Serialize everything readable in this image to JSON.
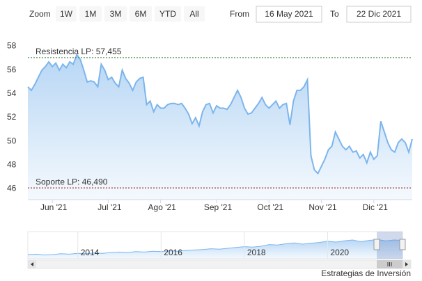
{
  "range_selector": {
    "zoom_label": "Zoom",
    "buttons": [
      "1W",
      "1M",
      "3M",
      "6M",
      "YTD",
      "All"
    ],
    "from_label": "From",
    "from": "16 May 2021",
    "to_label": "To",
    "to": "22 Dic 2021"
  },
  "chart_data": {
    "type": "area",
    "color": "#7cb5ec",
    "categories": [
      null,
      null,
      null,
      null,
      null,
      null,
      null,
      "Jun '21",
      null,
      null,
      null,
      null,
      null,
      null,
      null,
      null,
      null,
      null,
      null,
      null,
      null,
      null,
      null,
      "Jul '21",
      null,
      null,
      null,
      null,
      null,
      null,
      null,
      null,
      null,
      null,
      null,
      null,
      null,
      null,
      "Ago '21",
      null,
      null,
      null,
      null,
      null,
      null,
      null,
      null,
      null,
      null,
      null,
      null,
      null,
      null,
      null,
      "Sep '21",
      null,
      null,
      null,
      null,
      null,
      null,
      null,
      null,
      null,
      null,
      null,
      null,
      null,
      null,
      "Oct '21",
      null,
      null,
      null,
      null,
      null,
      null,
      null,
      null,
      null,
      null,
      null,
      null,
      null,
      null,
      "Nov '21",
      null,
      null,
      null,
      null,
      null,
      null,
      null,
      null,
      null,
      null,
      null,
      null,
      null,
      null,
      "Dic '21",
      null,
      null,
      null,
      null,
      null,
      null,
      null,
      null,
      null,
      null,
      null
    ],
    "values": [
      55.0,
      54.7,
      55.2,
      55.8,
      56.4,
      56.7,
      57.1,
      56.7,
      57.0,
      56.4,
      56.9,
      56.6,
      57.1,
      56.9,
      57.7,
      57.3,
      56.4,
      55.4,
      55.5,
      55.4,
      55.0,
      56.9,
      56.4,
      55.6,
      55.8,
      55.3,
      55.0,
      56.4,
      55.7,
      55.3,
      54.7,
      55.4,
      55.7,
      55.8,
      53.5,
      53.8,
      52.9,
      53.5,
      53.2,
      53.2,
      53.5,
      53.6,
      53.6,
      53.5,
      53.6,
      53.2,
      52.7,
      51.9,
      52.4,
      51.7,
      52.9,
      53.5,
      53.6,
      52.8,
      53.4,
      53.2,
      53.2,
      53.1,
      53.5,
      54.1,
      54.7,
      54.1,
      53.2,
      52.7,
      52.8,
      53.2,
      53.6,
      54.1,
      53.5,
      53.2,
      53.5,
      53.8,
      53.2,
      53.5,
      53.6,
      51.8,
      53.8,
      54.7,
      54.7,
      55.0,
      55.6,
      49.2,
      48.0,
      47.7,
      48.3,
      48.9,
      49.7,
      50.0,
      51.2,
      50.6,
      50.0,
      49.7,
      50.0,
      49.5,
      49.6,
      49.0,
      49.3,
      48.6,
      49.5,
      48.9,
      49.2,
      52.1,
      51.2,
      50.3,
      49.7,
      49.5,
      50.3,
      50.6,
      50.3,
      49.5,
      50.6
    ],
    "ylim": [
      45.5,
      58.5
    ],
    "yticks": [
      46,
      48,
      50,
      52,
      54,
      56,
      58
    ],
    "grid": false,
    "plot_lines": [
      {
        "label": "Resistencia LP: 57,455",
        "value": 57.455,
        "color": "#2e7d32"
      },
      {
        "label": "Soporte LP: 46,490",
        "value": 46.49,
        "color": "#8b0000"
      }
    ]
  },
  "navigator": {
    "type": "area",
    "color": "#7cb5ec",
    "categories": [
      null,
      null,
      null,
      null,
      null,
      null,
      "2014",
      null,
      null,
      null,
      null,
      null,
      null,
      null,
      null,
      null,
      "2016",
      null,
      null,
      null,
      null,
      null,
      null,
      null,
      null,
      null,
      "2018",
      null,
      null,
      null,
      null,
      null,
      null,
      null,
      null,
      null,
      "2020",
      null,
      null,
      null,
      null,
      null,
      null,
      null,
      null,
      null
    ],
    "values": [
      10,
      11,
      9,
      10,
      12,
      11,
      13,
      12,
      14,
      13,
      15,
      16,
      15,
      17,
      16,
      18,
      17,
      19,
      18,
      20,
      21,
      22,
      24,
      23,
      25,
      27,
      29,
      28,
      30,
      34,
      33,
      36,
      38,
      35,
      37,
      39,
      42,
      40,
      43,
      45,
      41,
      44,
      46,
      43,
      45,
      44
    ],
    "ylim": [
      0,
      60
    ]
  },
  "credits": "Estrategias de Inversión"
}
